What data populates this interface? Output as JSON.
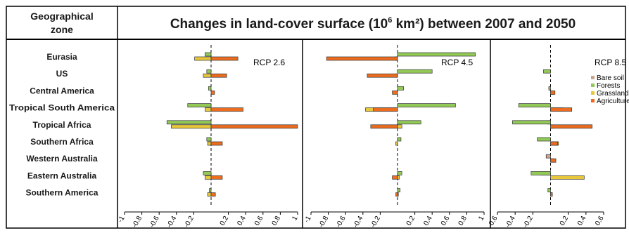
{
  "header": {
    "zone_line1": "Geographical",
    "zone_line2": "zone",
    "title_pre": "Changes in land-cover surface (10",
    "title_sup": "6",
    "title_post": " km²) between 2007 and 2050"
  },
  "zones": [
    "Eurasia",
    "US",
    "Central America",
    "Tropical South America",
    "Tropical Africa",
    "Southern Africa",
    "Western Australia",
    "Eastern Australia",
    "Southern America"
  ],
  "colors": {
    "Bare soil": "#c9a48e",
    "Forests": "#92c957",
    "Grassland": "#e8c73a",
    "Agriculture": "#ec6d1f",
    "frame": "#000000"
  },
  "chart_data": [
    {
      "type": "bar",
      "title": "RCP 2.6",
      "orientation": "horizontal",
      "categories": [
        "Eurasia",
        "US",
        "Central America",
        "Tropical South America",
        "Tropical Africa",
        "Southern Africa",
        "Western Australia",
        "Eastern Australia",
        "Southern America"
      ],
      "xlim": [
        -1,
        1
      ],
      "xticks": [
        -1,
        -0.8,
        -0.6,
        -0.4,
        -0.2,
        0.2,
        0.4,
        0.6,
        0.8,
        1
      ],
      "tick_labels": [
        "-1",
        "-0.8",
        "-0.6",
        "-0.4",
        "-0.2",
        "0.2",
        "0.4",
        "0.6",
        "0.8",
        "1"
      ],
      "series": [
        {
          "name": "Bare soil",
          "values": [
            0,
            0,
            0,
            0,
            0,
            0,
            0,
            0,
            0
          ]
        },
        {
          "name": "Forests",
          "values": [
            -0.07,
            -0.05,
            -0.03,
            -0.27,
            -0.51,
            -0.05,
            0,
            -0.09,
            -0.02
          ]
        },
        {
          "name": "Grassland",
          "values": [
            -0.19,
            -0.09,
            0,
            -0.07,
            -0.46,
            -0.04,
            0,
            -0.07,
            -0.04
          ]
        },
        {
          "name": "Agriculture",
          "values": [
            0.31,
            0.18,
            0.04,
            0.37,
            1.0,
            0.13,
            0,
            0.13,
            0.05
          ]
        }
      ]
    },
    {
      "type": "bar",
      "title": "RCP 4.5",
      "orientation": "horizontal",
      "categories": [
        "Eurasia",
        "US",
        "Central America",
        "Tropical South America",
        "Tropical Africa",
        "Southern Africa",
        "Western Australia",
        "Eastern Australia",
        "Southern America"
      ],
      "xlim": [
        -1,
        1
      ],
      "xticks": [
        -1,
        -0.8,
        -0.6,
        -0.4,
        -0.2,
        0.2,
        0.4,
        0.6,
        0.8,
        1
      ],
      "tick_labels": [
        "-1",
        "-0.8",
        "-0.6",
        "-0.4",
        "-0.2",
        "0.2",
        "0.4",
        "0.6",
        "0.8",
        "1"
      ],
      "series": [
        {
          "name": "Bare soil",
          "values": [
            0,
            0,
            0,
            0,
            0,
            0,
            0,
            0,
            0
          ]
        },
        {
          "name": "Forests",
          "values": [
            0.9,
            0.4,
            0.07,
            0.67,
            0.27,
            0.04,
            0,
            0.05,
            0.03
          ]
        },
        {
          "name": "Grassland",
          "values": [
            -0.03,
            -0.02,
            0,
            -0.37,
            0.05,
            -0.02,
            0,
            0.02,
            0.01
          ]
        },
        {
          "name": "Agriculture",
          "values": [
            -0.82,
            -0.35,
            -0.06,
            -0.28,
            -0.31,
            0,
            0,
            -0.06,
            -0.02
          ]
        }
      ]
    },
    {
      "type": "bar",
      "title": "RCP 8.5",
      "orientation": "horizontal",
      "categories": [
        "Eurasia",
        "US",
        "Central America",
        "Tropical South America",
        "Tropical Africa",
        "Southern Africa",
        "Western Australia",
        "Eastern Australia",
        "Southern America"
      ],
      "xlim": [
        -0.6,
        0.6
      ],
      "xticks": [
        -0.6,
        -0.4,
        -0.2,
        0.2,
        0.4,
        0.6
      ],
      "tick_labels": [
        "-0.6",
        "-0.4",
        "-0.2",
        "0.2",
        "0.4",
        "0.6"
      ],
      "series": [
        {
          "name": "Bare soil",
          "values": [
            0,
            0,
            0,
            0,
            -0.03,
            0,
            -0.05,
            -0.11,
            0
          ]
        },
        {
          "name": "Forests",
          "values": [
            0,
            -0.08,
            -0.02,
            -0.36,
            -0.43,
            -0.15,
            0,
            -0.22,
            -0.03
          ]
        },
        {
          "name": "Grassland",
          "values": [
            0,
            0,
            0.04,
            0.14,
            0.03,
            0.09,
            0.04,
            0.38,
            0.02
          ]
        },
        {
          "name": "Agriculture",
          "values": [
            0,
            0,
            0.05,
            0.24,
            0.47,
            0.08,
            0.06,
            0,
            0.02
          ]
        }
      ],
      "legend": [
        "Bare soil",
        "Forests",
        "Grassland",
        "Agriculture"
      ],
      "legend_position": "right"
    }
  ]
}
